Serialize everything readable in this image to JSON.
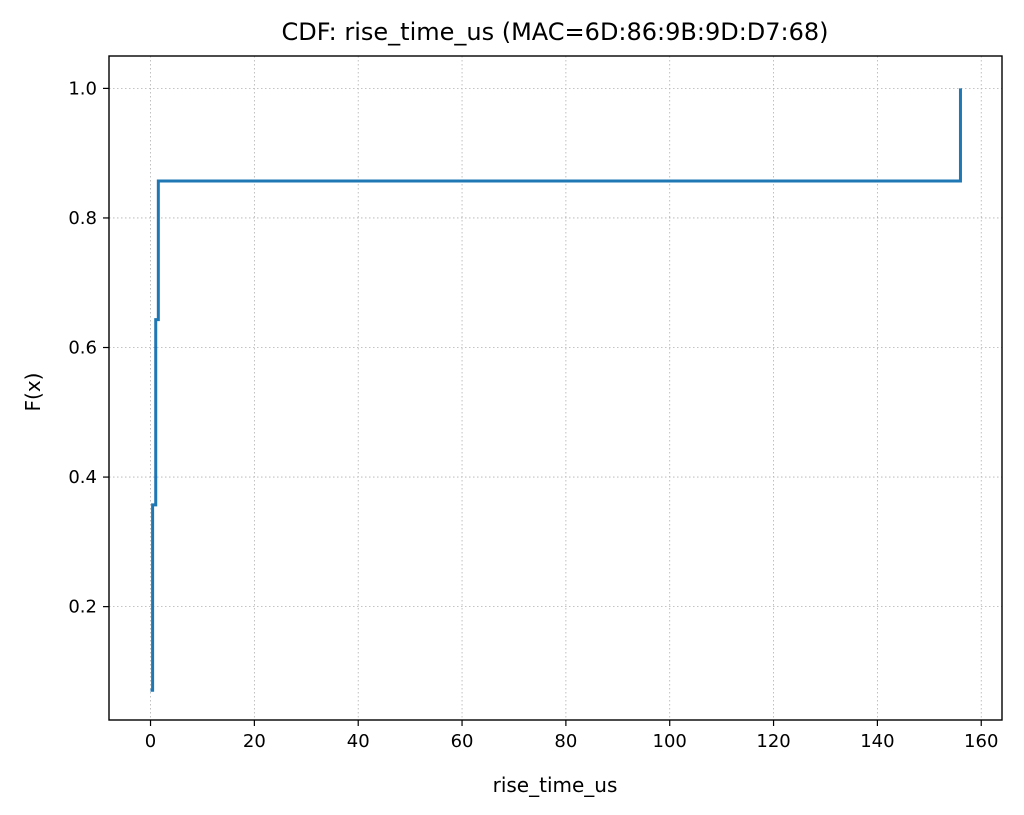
{
  "chart_data": {
    "type": "line",
    "step": true,
    "title": "CDF: rise_time_us (MAC=6D:86:9B:9D:D7:68)",
    "xlabel": "rise_time_us",
    "ylabel": "F(x)",
    "xlim": [
      -8,
      164
    ],
    "ylim": [
      0.025,
      1.05
    ],
    "xticks": [
      0,
      20,
      40,
      60,
      80,
      100,
      120,
      140,
      160
    ],
    "yticks": [
      0.2,
      0.4,
      0.6,
      0.8,
      1.0
    ],
    "xtick_labels": [
      "0",
      "20",
      "40",
      "60",
      "80",
      "100",
      "120",
      "140",
      "160"
    ],
    "ytick_labels": [
      "0.2",
      "0.4",
      "0.6",
      "0.8",
      "1.0"
    ],
    "grid": true,
    "series": [
      {
        "color": "#1f77b4",
        "x": [
          0.0,
          0.4,
          1.0,
          1.5,
          156.0
        ],
        "y": [
          0.071,
          0.357,
          0.643,
          0.857,
          0.929
        ],
        "end": [
          156.0,
          1.0
        ]
      }
    ]
  }
}
